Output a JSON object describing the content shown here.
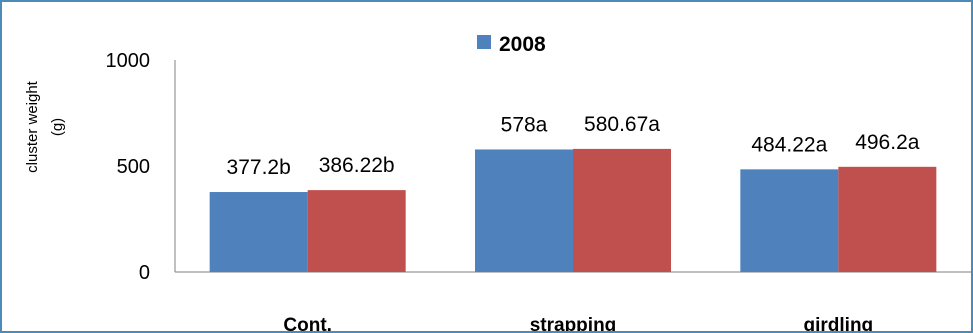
{
  "chart_data": {
    "type": "bar",
    "title": "",
    "xlabel": "",
    "ylabel_lines": [
      "cluster weight",
      "(g)"
    ],
    "categories": [
      "Cont.",
      "strapping",
      "girdling"
    ],
    "yticks": [
      "0",
      "500",
      "1000"
    ],
    "ylim": [
      0,
      1000
    ],
    "grid": false,
    "legend_position": "top-center",
    "series": [
      {
        "name": "2008",
        "color": "#4f81bd",
        "values": [
          377.2,
          578,
          484.22
        ],
        "labels": [
          "377.2b",
          "578a",
          "484.22a"
        ]
      },
      {
        "color": "#c0504d",
        "values": [
          386.22,
          580.67,
          496.2
        ],
        "labels": [
          "386.22b",
          "580.67a",
          "496.2a"
        ]
      }
    ]
  }
}
